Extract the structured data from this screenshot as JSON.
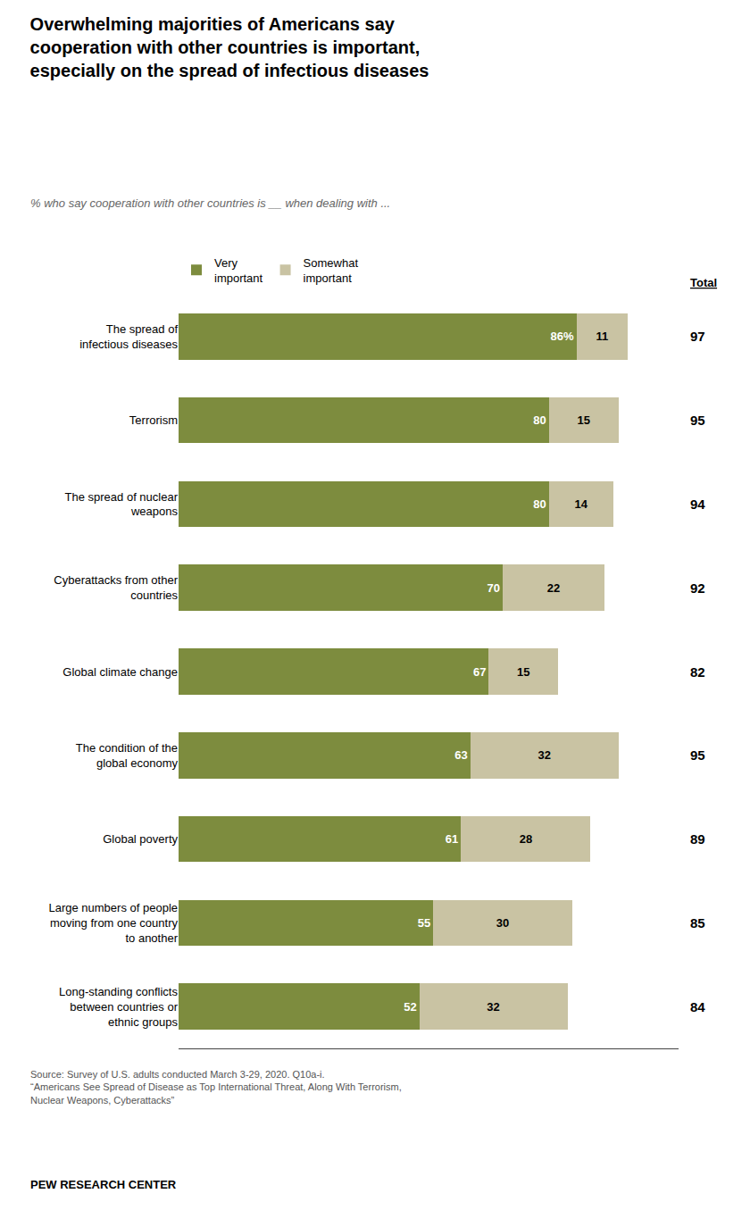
{
  "chart_data": {
    "type": "bar",
    "orientation": "horizontal",
    "stacked": true,
    "title": "Overwhelming majorities of Americans say\ncooperation with other countries is important,\nespecially on the spread of infectious diseases",
    "subtitle": "% who say cooperation with other countries is __ when dealing with ...",
    "categories": [
      "The spread of\ninfectious diseases",
      "Terrorism",
      "The spread of nuclear\nweapons",
      "Cyberattacks from other\ncountries",
      "Global climate change",
      "The condition of the\nglobal economy",
      "Global poverty",
      "Large numbers of people\nmoving from one country\nto another",
      "Long-standing conflicts\nbetween countries or\nethnic groups"
    ],
    "series": [
      {
        "name": "Very\nimportant",
        "color": "#7d8c3e",
        "values": [
          86,
          80,
          80,
          70,
          67,
          63,
          61,
          55,
          52
        ],
        "value_labels": [
          "86%",
          "80",
          "80",
          "70",
          "67",
          "63",
          "61",
          "55",
          "52"
        ]
      },
      {
        "name": "Somewhat\nimportant",
        "color": "#c9c3a3",
        "values": [
          11,
          15,
          14,
          22,
          15,
          32,
          28,
          30,
          32
        ]
      }
    ],
    "totals": {
      "name": "Total",
      "values": [
        97,
        95,
        94,
        92,
        82,
        95,
        89,
        85,
        84
      ]
    },
    "data_labels": true,
    "xlim": [
      0,
      108
    ],
    "grid": false,
    "legend": "top",
    "tick_labels": "y",
    "annotations": [
      "Source: Survey of U.S. adults conducted March 3-29, 2020. Q10a-i.\n“Americans See Spread of Disease as Top International Threat, Along With Terrorism,\nNuclear Weapons, Cyberattacks”",
      "PEW RESEARCH CENTER"
    ]
  }
}
